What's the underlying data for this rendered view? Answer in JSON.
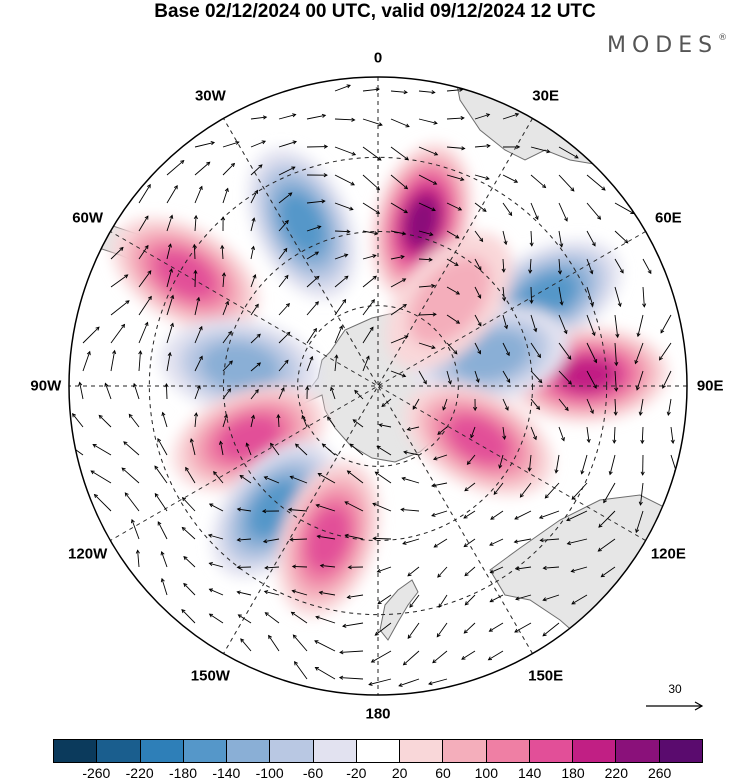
{
  "title": "Base 02/12/2024 00 UTC, valid 09/12/2024 12 UTC",
  "brand": {
    "name": "MODES",
    "mark": "®"
  },
  "map": {
    "projection": "south-polar-stereographic",
    "longitude_labels": [
      "0",
      "30E",
      "60E",
      "90E",
      "120E",
      "150E",
      "180",
      "150W",
      "120W",
      "90W",
      "60W",
      "30W"
    ],
    "colors": {
      "land": "#e8e8e8",
      "coast": "#6e6e6e",
      "grid": "#222222"
    }
  },
  "anomaly_cells": [
    {
      "lon": 15,
      "r": 0.55,
      "value": 230
    },
    {
      "lon": -25,
      "r": 0.58,
      "value": -160
    },
    {
      "lon": -60,
      "r": 0.72,
      "value": 140
    },
    {
      "lon": -82,
      "r": 0.45,
      "value": -100
    },
    {
      "lon": -112,
      "r": 0.45,
      "value": 170
    },
    {
      "lon": -140,
      "r": 0.52,
      "value": -170
    },
    {
      "lon": -162,
      "r": 0.52,
      "value": 140
    },
    {
      "lon": 62,
      "r": 0.62,
      "value": -160
    },
    {
      "lon": 87,
      "r": 0.68,
      "value": 190
    },
    {
      "lon": 75,
      "r": 0.38,
      "value": -120
    },
    {
      "lon": 118,
      "r": 0.37,
      "value": 150
    },
    {
      "lon": 40,
      "r": 0.36,
      "value": 60
    }
  ],
  "reference_vector": {
    "value": "30"
  },
  "colorbar": {
    "colors": [
      "#0b3a5c",
      "#1a5e8e",
      "#2e7fb8",
      "#5597c9",
      "#8aafd6",
      "#b9c8e3",
      "#e2e2f0",
      "#ffffff",
      "#f9d7d9",
      "#f4aebb",
      "#ef7fa4",
      "#e24f98",
      "#c11f84",
      "#8a117a",
      "#5a0b6e"
    ],
    "labels": [
      "-260",
      "-220",
      "-180",
      "-140",
      "-100",
      "-60",
      "-20",
      "20",
      "60",
      "100",
      "140",
      "180",
      "220",
      "260"
    ]
  }
}
